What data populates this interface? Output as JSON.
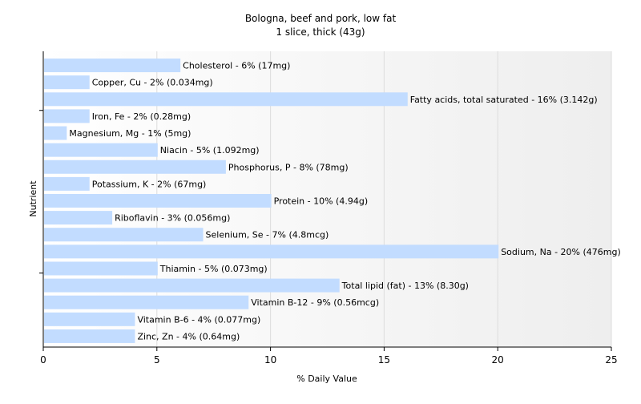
{
  "chart_data": {
    "type": "bar",
    "orientation": "horizontal",
    "title": "Bologna, beef and pork, low fat",
    "subtitle": "1 slice, thick (43g)",
    "xlabel": "% Daily Value",
    "ylabel": "Nutrient",
    "xlim": [
      0,
      25
    ],
    "xticks": [
      0,
      5,
      10,
      15,
      20,
      25
    ],
    "grid": true,
    "legend": "none",
    "bar_color": "#c2dcff",
    "categories": [
      "Cholesterol",
      "Copper, Cu",
      "Fatty acids, total saturated",
      "Iron, Fe",
      "Magnesium, Mg",
      "Niacin",
      "Phosphorus, P",
      "Potassium, K",
      "Protein",
      "Riboflavin",
      "Selenium, Se",
      "Sodium, Na",
      "Thiamin",
      "Total lipid (fat)",
      "Vitamin B-12",
      "Vitamin B-6",
      "Zinc, Zn"
    ],
    "values": [
      6,
      2,
      16,
      2,
      1,
      5,
      8,
      2,
      10,
      3,
      7,
      20,
      5,
      13,
      9,
      4,
      4
    ],
    "data_labels": [
      "Cholesterol - 6% (17mg)",
      "Copper, Cu - 2% (0.034mg)",
      "Fatty acids, total saturated - 16% (3.142g)",
      "Iron, Fe - 2% (0.28mg)",
      "Magnesium, Mg - 1% (5mg)",
      "Niacin - 5% (1.092mg)",
      "Phosphorus, P - 8% (78mg)",
      "Potassium, K - 2% (67mg)",
      "Protein - 10% (4.94g)",
      "Riboflavin - 3% (0.056mg)",
      "Selenium, Se - 7% (4.8mcg)",
      "Sodium, Na - 20% (476mg)",
      "Thiamin - 5% (0.073mg)",
      "Total lipid (fat) - 13% (8.30g)",
      "Vitamin B-12 - 9% (0.56mcg)",
      "Vitamin B-6 - 4% (0.077mg)",
      "Zinc, Zn - 4% (0.64mg)"
    ]
  }
}
